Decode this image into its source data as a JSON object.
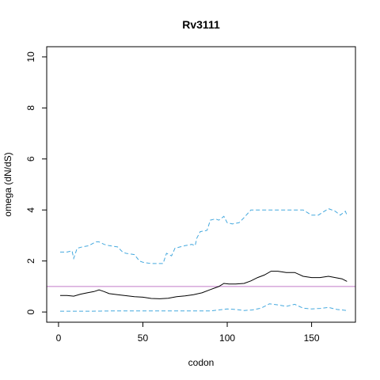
{
  "chart_data": {
    "type": "line",
    "title": "Rv3111",
    "xlabel": "codon",
    "ylabel": "omega (dN/dS)",
    "xlim": [
      -7,
      176
    ],
    "ylim": [
      -0.4,
      10.4
    ],
    "xticks": [
      0,
      50,
      100,
      150
    ],
    "yticks": [
      0,
      2,
      4,
      6,
      8,
      10
    ],
    "grid": false,
    "legend": "none",
    "reference_line": {
      "y": 1,
      "color": "#c27ac9"
    },
    "series": [
      {
        "style": "solid",
        "color": "#000000",
        "x": [
          1,
          5,
          9,
          13,
          17,
          21,
          24,
          27,
          30,
          35,
          40,
          45,
          50,
          55,
          60,
          65,
          70,
          75,
          80,
          85,
          90,
          95,
          98,
          101,
          105,
          110,
          114,
          118,
          122,
          126,
          130,
          135,
          140,
          145,
          150,
          155,
          160,
          164,
          168,
          171
        ],
        "y": [
          0.65,
          0.65,
          0.62,
          0.7,
          0.75,
          0.8,
          0.87,
          0.8,
          0.72,
          0.68,
          0.64,
          0.6,
          0.58,
          0.53,
          0.52,
          0.54,
          0.6,
          0.63,
          0.68,
          0.75,
          0.88,
          1.0,
          1.12,
          1.1,
          1.1,
          1.12,
          1.22,
          1.35,
          1.45,
          1.6,
          1.6,
          1.55,
          1.55,
          1.4,
          1.35,
          1.35,
          1.4,
          1.35,
          1.3,
          1.2
        ]
      },
      {
        "style": "dashed",
        "color": "#45a9de",
        "x": [
          1,
          5,
          8,
          9,
          11,
          14,
          18,
          22,
          24,
          27,
          30,
          35,
          38,
          40,
          45,
          48,
          50,
          55,
          62,
          64,
          67,
          69,
          72,
          75,
          79,
          81,
          82,
          84,
          88,
          90,
          93,
          95,
          98,
          100,
          103,
          107,
          110,
          114,
          118,
          122,
          126,
          130,
          135,
          140,
          145,
          150,
          154,
          160,
          164,
          167,
          170,
          171
        ],
        "y": [
          2.35,
          2.35,
          2.4,
          2.1,
          2.5,
          2.55,
          2.6,
          2.75,
          2.75,
          2.65,
          2.6,
          2.55,
          2.35,
          2.3,
          2.25,
          2.0,
          1.95,
          1.9,
          1.9,
          2.3,
          2.2,
          2.5,
          2.55,
          2.6,
          2.65,
          2.6,
          2.9,
          3.15,
          3.2,
          3.6,
          3.65,
          3.6,
          3.75,
          3.5,
          3.45,
          3.5,
          3.7,
          4.0,
          4.0,
          4.0,
          4.0,
          4.0,
          4.0,
          4.0,
          4.0,
          3.8,
          3.8,
          4.05,
          3.95,
          3.8,
          3.95,
          3.8
        ]
      },
      {
        "style": "dashed",
        "color": "#45a9de",
        "x": [
          1,
          10,
          20,
          30,
          40,
          50,
          60,
          70,
          80,
          90,
          95,
          100,
          105,
          110,
          115,
          120,
          125,
          130,
          135,
          140,
          145,
          150,
          155,
          160,
          165,
          171
        ],
        "y": [
          0.03,
          0.03,
          0.03,
          0.04,
          0.04,
          0.04,
          0.04,
          0.04,
          0.04,
          0.04,
          0.08,
          0.12,
          0.1,
          0.06,
          0.08,
          0.15,
          0.32,
          0.28,
          0.22,
          0.3,
          0.15,
          0.12,
          0.14,
          0.18,
          0.1,
          0.06
        ]
      }
    ]
  }
}
